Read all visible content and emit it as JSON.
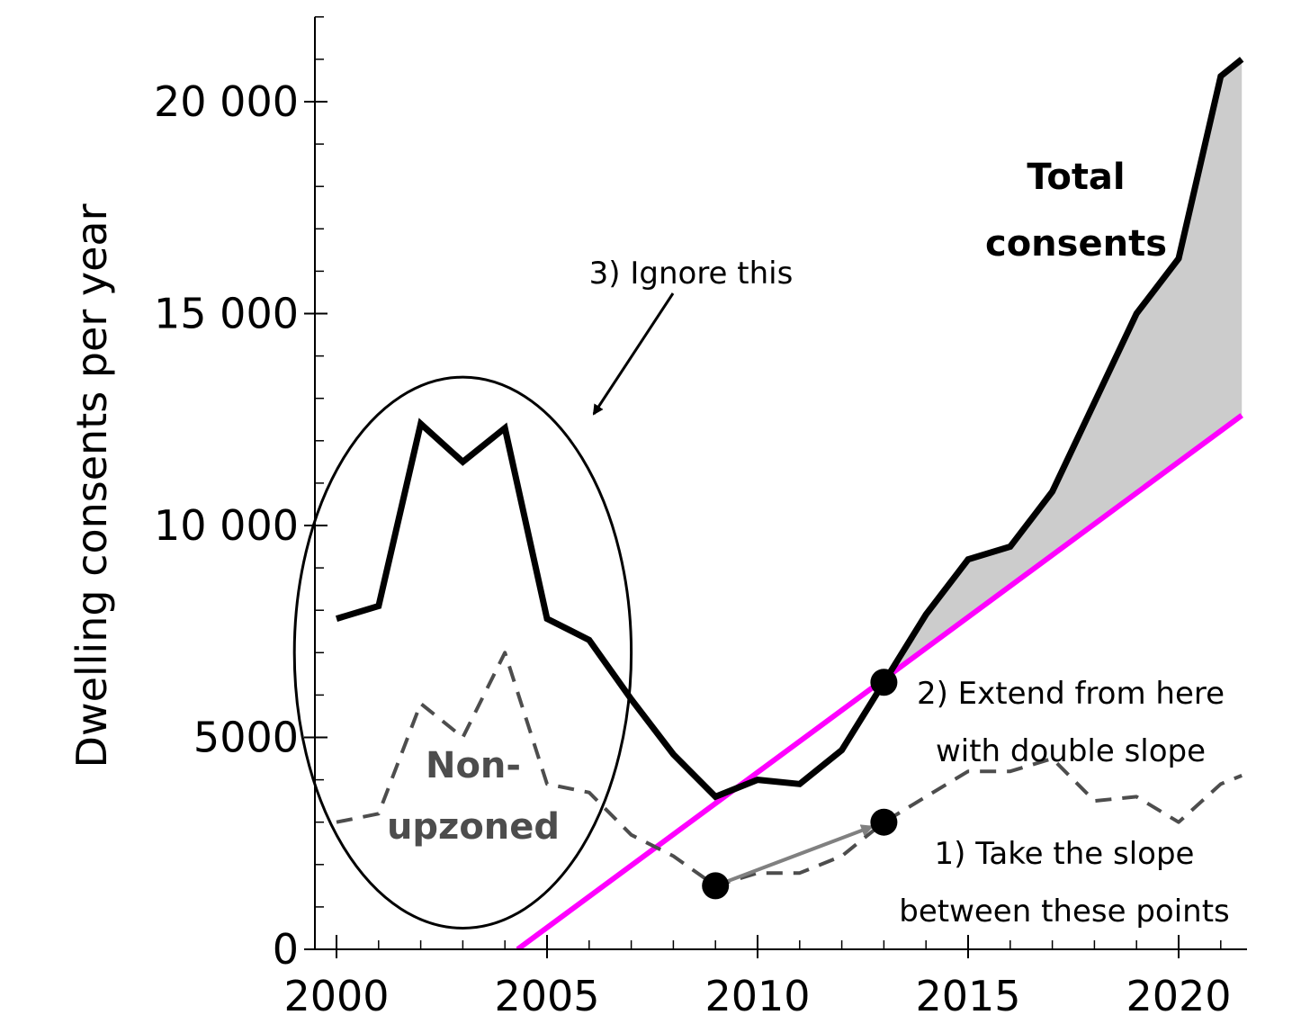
{
  "chart_data": {
    "type": "line",
    "title": "",
    "xlabel": "",
    "ylabel": "Dwelling consents per year",
    "xlim": [
      1999.5,
      2021.5
    ],
    "ylim": [
      0,
      22000
    ],
    "x_ticks": [
      2000,
      2005,
      2010,
      2015,
      2020
    ],
    "x_tick_labels": [
      "2000",
      "2005",
      "2010",
      "2015",
      "2020"
    ],
    "y_ticks": [
      0,
      5000,
      10000,
      15000,
      20000
    ],
    "y_tick_labels": [
      "0",
      "5000",
      "10 000",
      "15 000",
      "20 000"
    ],
    "y_minor_step": 1000,
    "grid": false,
    "series": [
      {
        "name": "Total consents",
        "color": "#000000",
        "style": "solid",
        "x": [
          2000,
          2001,
          2002,
          2003,
          2004,
          2005,
          2006,
          2007,
          2008,
          2009,
          2010,
          2011,
          2012,
          2013,
          2014,
          2015,
          2016,
          2017,
          2018,
          2019,
          2020,
          2021,
          2021.5
        ],
        "y": [
          7800,
          8100,
          12400,
          11500,
          12300,
          7800,
          7300,
          5900,
          4600,
          3600,
          4000,
          3900,
          4700,
          6300,
          7900,
          9200,
          9500,
          10800,
          12900,
          15000,
          16300,
          20600,
          21000
        ]
      },
      {
        "name": "Non-upzoned",
        "color": "#4d4d4d",
        "style": "dashed",
        "x": [
          2000,
          2001,
          2002,
          2003,
          2004,
          2005,
          2006,
          2007,
          2008,
          2009,
          2010,
          2011,
          2012,
          2013,
          2014,
          2015,
          2016,
          2017,
          2018,
          2019,
          2020,
          2021,
          2021.5
        ],
        "y": [
          3000,
          3200,
          5800,
          5000,
          7000,
          3900,
          3700,
          2700,
          2200,
          1500,
          1800,
          1800,
          2200,
          3000,
          3600,
          4200,
          4200,
          4500,
          3500,
          3600,
          3000,
          3900,
          4100
        ]
      },
      {
        "name": "",
        "color": "#ff00ff",
        "style": "solid",
        "x": [
          2004.3,
          2021.5
        ],
        "y": [
          0,
          12600
        ]
      }
    ],
    "shaded_area": {
      "between": [
        "Total consents",
        "extension"
      ],
      "from_x": 2013,
      "color": "#cccccc"
    },
    "points": [
      {
        "x": 2009,
        "y": 1500
      },
      {
        "x": 2013,
        "y": 3000
      },
      {
        "x": 2013,
        "y": 6300
      }
    ],
    "slope_arrow": {
      "from": [
        2009,
        1500
      ],
      "to": [
        2013,
        3000
      ],
      "color": "#808080"
    },
    "ignore_ellipse": {
      "cx": 2003,
      "cy": 7000,
      "rx": 4,
      "ry": 6500
    },
    "annotations": {
      "total_label_line1": "Total",
      "total_label_line2": "consents",
      "nonupzoned_line1": "Non-",
      "nonupzoned_line2": "upzoned",
      "step1_line1": "1) Take the slope",
      "step1_line2": "between these points",
      "step2_line1": "2) Extend from here",
      "step2_line2": "with double slope",
      "step3": "3) Ignore this"
    }
  }
}
